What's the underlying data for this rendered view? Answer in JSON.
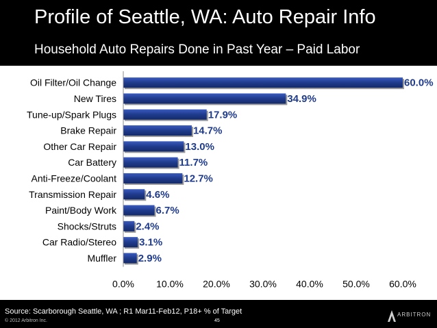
{
  "header": {
    "title": "Profile of Seattle, WA: Auto Repair Info",
    "subtitle": "Household Auto Repairs Done in Past Year – Paid Labor"
  },
  "chart_data": {
    "type": "bar",
    "orientation": "horizontal",
    "title": "Household Auto Repairs Done in Past Year – Paid Labor",
    "categories": [
      "Oil Filter/Oil Change",
      "New Tires",
      "Tune-up/Spark Plugs",
      "Brake Repair",
      "Other Car Repair",
      "Car Battery",
      "Anti-Freeze/Coolant",
      "Transmission Repair",
      "Paint/Body Work",
      "Shocks/Struts",
      "Car Radio/Stereo",
      "Muffler"
    ],
    "values": [
      60.0,
      34.9,
      17.9,
      14.7,
      13.0,
      11.7,
      12.7,
      4.6,
      6.7,
      2.4,
      3.1,
      2.9
    ],
    "value_labels": [
      "60.0%",
      "34.9%",
      "17.9%",
      "14.7%",
      "13.0%",
      "11.7%",
      "12.7%",
      "4.6%",
      "6.7%",
      "2.4%",
      "3.1%",
      "2.9%"
    ],
    "xlim": [
      0,
      60
    ],
    "xticks": [
      0,
      10,
      20,
      30,
      40,
      50,
      60
    ],
    "xtick_labels": [
      "0.0%",
      "10.0%",
      "20.0%",
      "30.0%",
      "40.0%",
      "50.0%",
      "60.0%"
    ],
    "xlabel": "",
    "ylabel": "",
    "grid": false,
    "bar_color": "#1f3b8c",
    "label_color": "#1f3b8c"
  },
  "footer": {
    "source": "Source:  Scarborough Seattle, WA ; R1 Mar11-Feb12, P18+ % of Target",
    "copyright": "© 2012 Arbitron Inc.",
    "page_number": "45",
    "logo_text": "ARBITRON"
  }
}
